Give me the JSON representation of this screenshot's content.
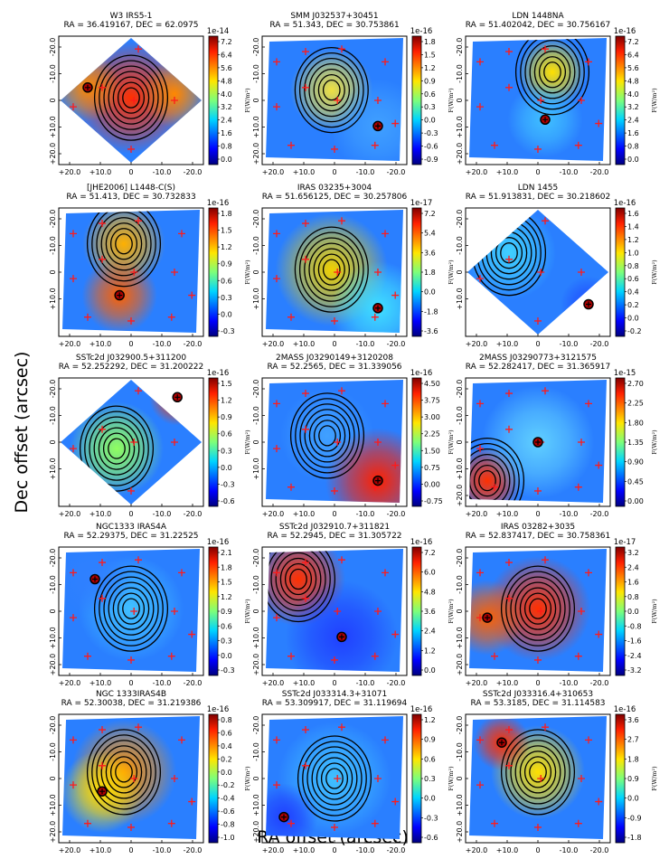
{
  "figure": {
    "xlabel": "RA offset (arcsec)",
    "ylabel": "Dec offset (arcsec)",
    "colorbar_label": "F(W/m²)"
  },
  "chart_data": [
    {
      "type": "heatmap",
      "object": "W3 IRS5-1",
      "coords": "RA = 36.419167, DEC = 62.0975",
      "exponent": "1e-14",
      "cb_ticks": [
        "7.2",
        "6.4",
        "5.6",
        "4.8",
        "4.0",
        "3.2",
        "2.4",
        "1.6",
        "0.8",
        "0.0"
      ],
      "xticks": [
        "+20.0",
        "+10.0",
        "0",
        "-10.0",
        "-20.0"
      ],
      "yticks": [
        "-20.0",
        "-10.0",
        "0",
        "+10.0",
        "+20.0"
      ]
    },
    {
      "type": "heatmap",
      "object": "SMM J032537+30451",
      "coords": "RA = 51.343, DEC = 30.753861",
      "exponent": "1e-16",
      "cb_ticks": [
        "1.8",
        "1.5",
        "1.2",
        "0.9",
        "0.6",
        "0.3",
        "0.0",
        "-0.3",
        "-0.6",
        "-0.9"
      ],
      "xticks": [
        "+20.0",
        "+10.0",
        "0",
        "-10.0",
        "-20.0"
      ],
      "yticks": [
        "-20.0",
        "-10.0",
        "0",
        "+10.0",
        "+20.0"
      ]
    },
    {
      "type": "heatmap",
      "object": "LDN 1448NA",
      "coords": "RA = 51.402042, DEC = 30.756167",
      "exponent": "1e-16",
      "cb_ticks": [
        "7.2",
        "6.4",
        "5.6",
        "4.8",
        "4.0",
        "3.2",
        "2.4",
        "1.6",
        "0.8",
        "0.0"
      ],
      "xticks": [
        "+20.0",
        "+10.0",
        "0",
        "-10.0",
        "-20.0"
      ],
      "yticks": [
        "-20.0",
        "-10.0",
        "0",
        "+10.0",
        "+20.0"
      ]
    },
    {
      "type": "heatmap",
      "object": "[JHE2006] L1448-C(S)",
      "coords": "RA = 51.413, DEC = 30.732833",
      "exponent": "1e-16",
      "cb_ticks": [
        "1.8",
        "1.5",
        "1.2",
        "0.9",
        "0.6",
        "0.3",
        "0.0",
        "-0.3"
      ],
      "xticks": [
        "+20.0",
        "+10.0",
        "0",
        "-10.0",
        "-20.0"
      ],
      "yticks": [
        "-20.0",
        "-10.0",
        "0",
        "+10.0"
      ]
    },
    {
      "type": "heatmap",
      "object": "IRAS 03235+3004",
      "coords": "RA = 51.656125, DEC = 30.257806",
      "exponent": "1e-17",
      "cb_ticks": [
        "7.2",
        "5.4",
        "3.6",
        "1.8",
        "0.0",
        "-1.8",
        "-3.6"
      ],
      "xticks": [
        "+20.0",
        "+10.0",
        "0",
        "-10.0",
        "-20.0"
      ],
      "yticks": [
        "-20.0",
        "-10.0",
        "0",
        "+10.0"
      ]
    },
    {
      "type": "heatmap",
      "object": "LDN 1455",
      "coords": "RA = 51.913831, DEC = 30.218602",
      "exponent": "1e-16",
      "cb_ticks": [
        "1.6",
        "1.4",
        "1.2",
        "1.0",
        "0.8",
        "0.6",
        "0.4",
        "0.2",
        "0.0",
        "-0.2"
      ],
      "xticks": [
        "+20.0",
        "+10.0",
        "0",
        "-10.0",
        "-20.0"
      ],
      "yticks": [
        "-20.0",
        "-10.0",
        "0",
        "+10.0"
      ]
    },
    {
      "type": "heatmap",
      "object": "SSTc2d J032900.5+311200",
      "coords": "RA = 52.252292, DEC = 31.200222",
      "exponent": "1e-16",
      "cb_ticks": [
        "1.5",
        "1.2",
        "0.9",
        "0.6",
        "0.3",
        "0.0",
        "-0.3",
        "-0.6"
      ],
      "xticks": [
        "+20.0",
        "+10.0",
        "0",
        "-10.0",
        "-20.0"
      ],
      "yticks": [
        "-20.0",
        "-10.0",
        "0",
        "+10.0"
      ]
    },
    {
      "type": "heatmap",
      "object": "2MASS J03290149+3120208",
      "coords": "RA = 52.2565, DEC = 31.339056",
      "exponent": "1e-16",
      "cb_ticks": [
        "4.50",
        "3.75",
        "3.00",
        "2.25",
        "1.50",
        "0.75",
        "0.00",
        "-0.75"
      ],
      "xticks": [
        "+20.0",
        "+10.0",
        "0",
        "-10.0",
        "-20.0"
      ],
      "yticks": [
        "-20.0",
        "-10.0",
        "0",
        "+10.0"
      ]
    },
    {
      "type": "heatmap",
      "object": "2MASS J03290773+3121575",
      "coords": "RA = 52.282417, DEC = 31.365917",
      "exponent": "1e-15",
      "cb_ticks": [
        "2.70",
        "2.25",
        "1.80",
        "1.35",
        "0.90",
        "0.45",
        "0.00"
      ],
      "xticks": [
        "+20.0",
        "+10.0",
        "0",
        "-10.0",
        "-20.0"
      ],
      "yticks": [
        "-20.0",
        "-10.0",
        "0",
        "+10.0",
        "+20.0"
      ]
    },
    {
      "type": "heatmap",
      "object": "NGC1333 IRAS4A",
      "coords": "RA = 52.29375, DEC = 31.22525",
      "exponent": "1e-16",
      "cb_ticks": [
        "2.1",
        "1.8",
        "1.5",
        "1.2",
        "0.9",
        "0.6",
        "0.3",
        "0.0",
        "-0.3"
      ],
      "xticks": [
        "+20.0",
        "+10.0",
        "0",
        "-10.0",
        "-20.0"
      ],
      "yticks": [
        "-20.0",
        "-10.0",
        "0",
        "+10.0",
        "+20.0"
      ]
    },
    {
      "type": "heatmap",
      "object": "SSTc2d J032910.7+311821",
      "coords": "RA = 52.2945, DEC = 31.305722",
      "exponent": "1e-16",
      "cb_ticks": [
        "7.2",
        "6.0",
        "4.8",
        "3.6",
        "2.4",
        "1.2",
        "0.0"
      ],
      "xticks": [
        "+20.0",
        "+10.0",
        "0",
        "-10.0",
        "-20.0"
      ],
      "yticks": [
        "-20.0",
        "-10.0",
        "0",
        "+10.0",
        "+20.0"
      ]
    },
    {
      "type": "heatmap",
      "object": "IRAS 03282+3035",
      "coords": "RA = 52.837417, DEC = 30.758361",
      "exponent": "1e-17",
      "cb_ticks": [
        "3.2",
        "2.4",
        "1.6",
        "0.8",
        "0.0",
        "-0.8",
        "-1.6",
        "-2.4",
        "-3.2"
      ],
      "xticks": [
        "+20.0",
        "+10.0",
        "0",
        "-10.0",
        "-20.0"
      ],
      "yticks": [
        "-20.0",
        "-10.0",
        "0",
        "+10.0",
        "+20.0"
      ]
    },
    {
      "type": "heatmap",
      "object": "NGC 1333IRAS4B",
      "coords": "RA = 52.30038, DEC = 31.219386",
      "exponent": "1e-16",
      "cb_ticks": [
        "0.8",
        "0.6",
        "0.4",
        "0.2",
        "0.0",
        "-0.2",
        "-0.4",
        "-0.6",
        "-0.8",
        "-1.0"
      ],
      "xticks": [
        "+20.0",
        "+10.0",
        "0",
        "-10.0",
        "-20.0"
      ],
      "yticks": [
        "-20.0",
        "-10.0",
        "0",
        "+10.0",
        "+20.0"
      ]
    },
    {
      "type": "heatmap",
      "object": "SSTc2d J033314.3+31071",
      "coords": "RA = 53.309917, DEC = 31.119694",
      "exponent": "1e-16",
      "cb_ticks": [
        "1.2",
        "0.9",
        "0.6",
        "0.3",
        "0.0",
        "-0.3",
        "-0.6"
      ],
      "xticks": [
        "+20.0",
        "+10.0",
        "0",
        "-10.0",
        "-20.0"
      ],
      "yticks": [
        "-20.0",
        "-10.0",
        "0",
        "+10.0",
        "+20.0"
      ]
    },
    {
      "type": "heatmap",
      "object": "SSTc2d J033316.4+310653",
      "coords": "RA = 53.3185, DEC = 31.114583",
      "exponent": "1e-16",
      "cb_ticks": [
        "3.6",
        "2.7",
        "1.8",
        "0.9",
        "0.0",
        "-0.9",
        "-1.8"
      ],
      "xticks": [
        "+20.0",
        "+10.0",
        "0",
        "-10.0",
        "-20.0"
      ],
      "yticks": [
        "-20.0",
        "-10.0",
        "0",
        "+10.0",
        "+20.0"
      ]
    }
  ]
}
